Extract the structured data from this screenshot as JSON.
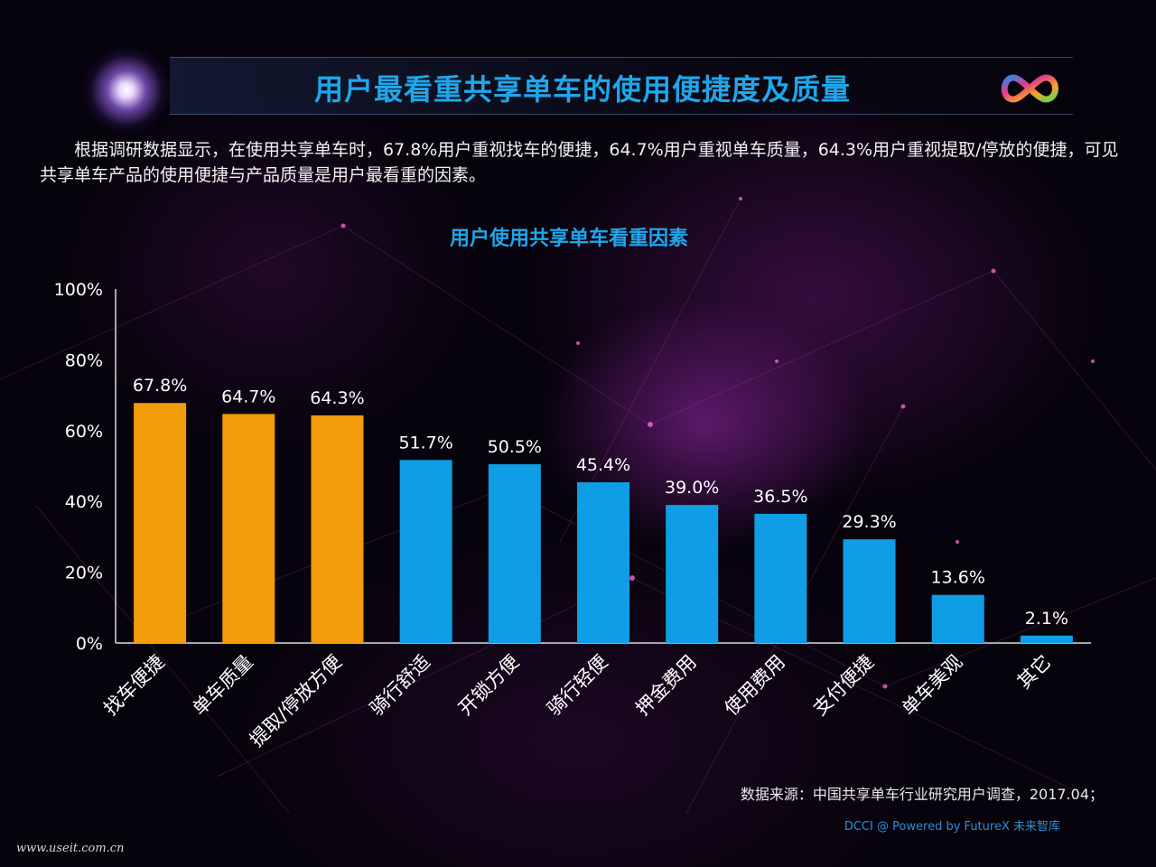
{
  "header": {
    "title": "用户最看重共享单车的使用便捷度及质量"
  },
  "intro": "根据调研数据显示，在使用共享单车时，67.8%用户重视找车的便捷，64.7%用户重视单车质量，64.3%用户重视提取/停放的便捷，可见共享单车产品的使用便捷与产品质量是用户最看重的因素。",
  "chart_data": {
    "type": "bar",
    "title": "用户使用共享单车看重因素",
    "categories": [
      "找车便捷",
      "单车质量",
      "提取/停放方便",
      "骑行舒适",
      "开锁方便",
      "骑行轻便",
      "押金费用",
      "使用费用",
      "支付便捷",
      "单车美观",
      "其它"
    ],
    "values": [
      67.8,
      64.7,
      64.3,
      51.7,
      50.5,
      45.4,
      39.0,
      36.5,
      29.3,
      13.6,
      2.1
    ],
    "value_labels": [
      "67.8%",
      "64.7%",
      "64.3%",
      "51.7%",
      "50.5%",
      "45.4%",
      "39.0%",
      "36.5%",
      "29.3%",
      "13.6%",
      "2.1%"
    ],
    "y_ticks": [
      "0%",
      "20%",
      "40%",
      "60%",
      "80%",
      "100%"
    ],
    "ylim": [
      0,
      100
    ],
    "grid": false,
    "bar_colors": [
      "#f29b0b",
      "#f29b0b",
      "#f29b0b",
      "#0f9ee6",
      "#0f9ee6",
      "#0f9ee6",
      "#0f9ee6",
      "#0f9ee6",
      "#0f9ee6",
      "#0f9ee6",
      "#0f9ee6"
    ]
  },
  "footer": {
    "source": "数据来源：中国共享单车行业研究用户调查，2017.04；",
    "credit": "DCCI @ Powered by FutureX 未来智库",
    "watermark": "www.useit.com.cn"
  },
  "logo_icon": "infinity-logo-icon"
}
